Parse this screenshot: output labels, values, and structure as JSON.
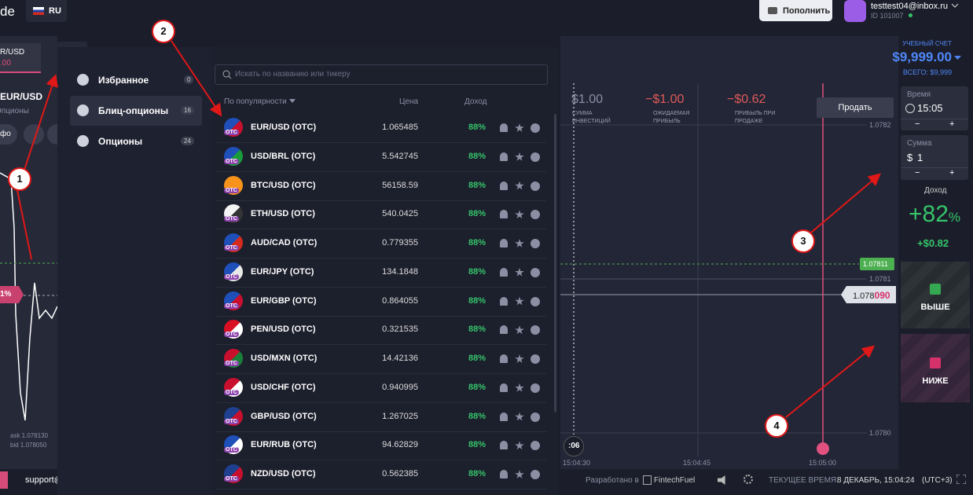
{
  "header": {
    "logo": "de",
    "lang": "RU",
    "deposit": "Пополнить",
    "email": "testtest04@inbox.ru",
    "user_id": "ID 101007"
  },
  "left_partial": {
    "pair_tab": "R/USD",
    "pair_tab_value": ".00",
    "pair": "EUR/USD",
    "pair_type": "Опционы",
    "info_button": "фо",
    "marker": "1%",
    "ask": "ask 1.078130",
    "bid": "bid 1.078050",
    "support": "support@"
  },
  "menu": {
    "items": [
      {
        "label": "Избранное",
        "count": "0"
      },
      {
        "label": "Блиц-опционы",
        "count": "16"
      },
      {
        "label": "Опционы",
        "count": "24"
      }
    ]
  },
  "asset_list": {
    "search_placeholder": "Искать по названию или тикеру",
    "headers": {
      "sort": "По популярности",
      "price": "Цена",
      "profit": "Доход"
    },
    "icon_badge": "OTC",
    "rows": [
      {
        "name": "EUR/USD (OTC)",
        "price": "1.065485",
        "profit": "88%"
      },
      {
        "name": "USD/BRL (OTC)",
        "price": "5.542745",
        "profit": "88%"
      },
      {
        "name": "BTC/USD (OTC)",
        "price": "56158.59",
        "profit": "88%"
      },
      {
        "name": "ETH/USD (OTC)",
        "price": "540.0425",
        "profit": "88%"
      },
      {
        "name": "AUD/CAD (OTC)",
        "price": "0.779355",
        "profit": "88%"
      },
      {
        "name": "EUR/JPY (OTC)",
        "price": "134.1848",
        "profit": "88%"
      },
      {
        "name": "EUR/GBP (OTC)",
        "price": "0.864055",
        "profit": "88%"
      },
      {
        "name": "PEN/USD (OTC)",
        "price": "0.321535",
        "profit": "88%"
      },
      {
        "name": "USD/MXN (OTC)",
        "price": "14.42136",
        "profit": "88%"
      },
      {
        "name": "USD/CHF (OTC)",
        "price": "0.940995",
        "profit": "88%"
      },
      {
        "name": "GBP/USD (OTC)",
        "price": "1.267025",
        "profit": "88%"
      },
      {
        "name": "EUR/RUB (OTC)",
        "price": "94.62829",
        "profit": "88%"
      },
      {
        "name": "NZD/USD (OTC)",
        "price": "0.562385",
        "profit": "88%"
      }
    ]
  },
  "chart": {
    "stats": [
      {
        "value": "$1.00",
        "label": "СУММА ИНВЕСТИЦИЙ"
      },
      {
        "value": "−$1.00",
        "label": "ОЖИДАЕМАЯ ПРИБЫЛЬ"
      },
      {
        "value": "−$0.62",
        "label": "ПРИБЫЛЬ ПРИ ПРОДАЖЕ"
      }
    ],
    "sell": "Продать",
    "price_levels": [
      "1.0782",
      "1.07811",
      "1.0781",
      "1.0780"
    ],
    "current_price": {
      "main": "1.078",
      "highlight": "090"
    },
    "times": [
      "15:04:30",
      "15:04:45",
      "15:05:00"
    ],
    "timer": ":06"
  },
  "right_panel": {
    "account_type": "УЧЕБНЫЙ СЧЕТ",
    "balance": "$9,999.00",
    "total": "ВСЕГО: $9,999",
    "time": {
      "label": "Время",
      "value": "15:05",
      "minus": "−",
      "plus": "+"
    },
    "amount": {
      "label": "Сумма",
      "currency": "$",
      "value": "1",
      "minus": "−",
      "plus": "+"
    },
    "profit": {
      "label": "Доход",
      "percent": "+82",
      "percent_sign": "%",
      "amount": "+$0.82"
    },
    "up": "ВЫШЕ",
    "down": "НИЖЕ"
  },
  "footer": {
    "developed": "Разработано в",
    "brand": "FintechFuel",
    "time_label": "ТЕКУЩЕЕ ВРЕМЯ:",
    "time": "8 ДЕКАБРЬ, 15:04:24",
    "timezone": "(UTC+3)"
  },
  "annotations": [
    "1",
    "2",
    "3",
    "4"
  ]
}
